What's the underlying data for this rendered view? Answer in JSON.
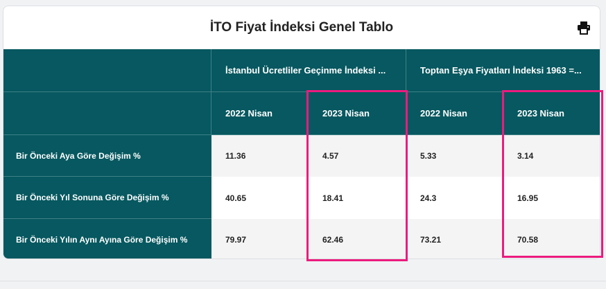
{
  "title": "İTO Fiyat İndeksi Genel Tablo",
  "print_icon": "printer-icon",
  "group_headers": [
    "İstanbul Ücretliler Geçinme İndeksi ...",
    "Toptan Eşya Fiyatları İndeksi 1963 =..."
  ],
  "period_headers": [
    "2022 Nisan",
    "2023 Nisan",
    "2022 Nisan",
    "2023 Nisan"
  ],
  "rows": [
    {
      "label": "Bir Önceki Aya Göre Değişim %",
      "values": [
        "11.36",
        "4.57",
        "5.33",
        "3.14"
      ]
    },
    {
      "label": "Bir Önceki Yıl Sonuna Göre Değişim %",
      "values": [
        "40.65",
        "18.41",
        "24.3",
        "16.95"
      ]
    },
    {
      "label": "Bir Önceki Yılın Aynı Ayına Göre Değişim %",
      "values": [
        "79.97",
        "62.46",
        "73.21",
        "70.58"
      ]
    }
  ],
  "colors": {
    "header_bg": "#075860",
    "highlight": "#ec1b7e"
  }
}
